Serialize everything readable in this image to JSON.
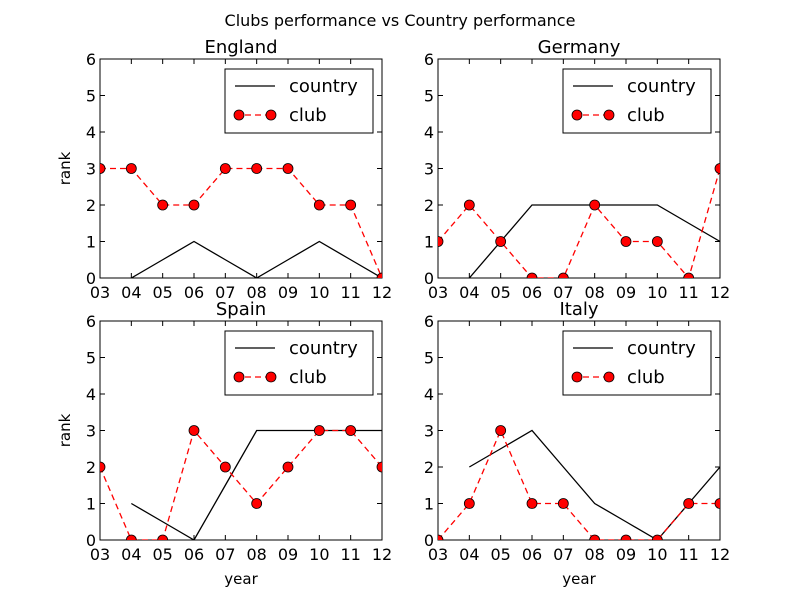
{
  "figure_title": "Clubs performance vs Country performance",
  "chart_data": [
    {
      "type": "line",
      "title": "England",
      "xlabel": "",
      "ylabel": "rank",
      "categories": [
        "03",
        "04",
        "05",
        "06",
        "07",
        "08",
        "09",
        "10",
        "11",
        "12"
      ],
      "ylim": [
        0,
        6
      ],
      "yticks": [
        "0",
        "1",
        "2",
        "3",
        "4",
        "5",
        "6"
      ],
      "legend_position": "upper-right",
      "series": [
        {
          "name": "country",
          "color": "#000000",
          "style": "solid",
          "marker": "none",
          "values": [
            null,
            0,
            0.5,
            1,
            0.5,
            0,
            0.5,
            1,
            0.5,
            0
          ]
        },
        {
          "name": "club",
          "color": "#ff0000",
          "style": "dashed",
          "marker": "circle",
          "values": [
            3,
            3,
            2,
            2,
            3,
            3,
            3,
            2,
            2,
            0
          ]
        }
      ]
    },
    {
      "type": "line",
      "title": "Germany",
      "xlabel": "",
      "ylabel": "",
      "categories": [
        "03",
        "04",
        "05",
        "06",
        "07",
        "08",
        "09",
        "10",
        "11",
        "12"
      ],
      "ylim": [
        0,
        6
      ],
      "yticks": [
        "0",
        "1",
        "2",
        "3",
        "4",
        "5",
        "6"
      ],
      "legend_position": "upper-right",
      "series": [
        {
          "name": "country",
          "color": "#000000",
          "style": "solid",
          "marker": "none",
          "values": [
            null,
            0,
            1,
            2,
            2,
            2,
            2,
            2,
            1.5,
            1
          ]
        },
        {
          "name": "club",
          "color": "#ff0000",
          "style": "dashed",
          "marker": "circle",
          "values": [
            1,
            2,
            1,
            0,
            0,
            2,
            1,
            1,
            0,
            3
          ]
        }
      ]
    },
    {
      "type": "line",
      "title": "Spain",
      "xlabel": "year",
      "ylabel": "rank",
      "categories": [
        "03",
        "04",
        "05",
        "06",
        "07",
        "08",
        "09",
        "10",
        "11",
        "12"
      ],
      "ylim": [
        0,
        6
      ],
      "yticks": [
        "0",
        "1",
        "2",
        "3",
        "4",
        "5",
        "6"
      ],
      "legend_position": "upper-right",
      "series": [
        {
          "name": "country",
          "color": "#000000",
          "style": "solid",
          "marker": "none",
          "values": [
            null,
            1,
            0.5,
            0,
            1.5,
            3,
            3,
            3,
            3,
            3
          ]
        },
        {
          "name": "club",
          "color": "#ff0000",
          "style": "dashed",
          "marker": "circle",
          "values": [
            2,
            0,
            0,
            3,
            2,
            1,
            2,
            3,
            3,
            2
          ]
        }
      ]
    },
    {
      "type": "line",
      "title": "Italy",
      "xlabel": "year",
      "ylabel": "",
      "categories": [
        "03",
        "04",
        "05",
        "06",
        "07",
        "08",
        "09",
        "10",
        "11",
        "12"
      ],
      "ylim": [
        0,
        6
      ],
      "yticks": [
        "0",
        "1",
        "2",
        "3",
        "4",
        "5",
        "6"
      ],
      "legend_position": "upper-right",
      "series": [
        {
          "name": "country",
          "color": "#000000",
          "style": "solid",
          "marker": "none",
          "values": [
            null,
            2,
            2.5,
            3,
            2,
            1,
            0.5,
            0,
            1,
            2
          ]
        },
        {
          "name": "club",
          "color": "#ff0000",
          "style": "dashed",
          "marker": "circle",
          "values": [
            0,
            1,
            3,
            1,
            1,
            0,
            0,
            0,
            1,
            1
          ]
        }
      ]
    }
  ]
}
